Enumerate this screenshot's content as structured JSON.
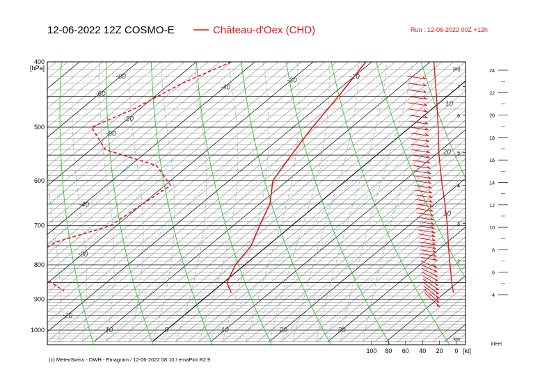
{
  "header": {
    "title": "12-06-2022 12Z COSMO-E",
    "station": "Château-d'Oex (CHD)",
    "run": "Run : 12-06-2022 00Z +12h"
  },
  "footer": "(c) MeteoSwiss - DWH - Emagram / 12-06-2022 08:10 / emaPlot R2.9",
  "colors": {
    "profile": "#e8161b",
    "isotherm": "#000000",
    "dry_adiabat": "#2bc42b",
    "moist_adiabat": "#a0a0a0",
    "mixing_ratio": "#33c8e8",
    "isobar": "#000000"
  },
  "chart_data": {
    "type": "line",
    "diagram": "emagram (skew-T log-p)",
    "y_axis": {
      "label": "[hPa]",
      "scale": "log",
      "range": [
        1040,
        400
      ],
      "ticks": [
        400,
        500,
        600,
        700,
        800,
        900,
        1000
      ],
      "grid": [
        400,
        450,
        500,
        550,
        600,
        650,
        700,
        750,
        800,
        850,
        900,
        950,
        1000
      ]
    },
    "x_axis": {
      "unit": "°C",
      "bottom_ticks": [
        "-10",
        "0",
        "10",
        "20",
        "30"
      ],
      "isotherm_labels": [
        "-60",
        "-60",
        "-50",
        "-50",
        "-40",
        "-40",
        "-30",
        "-30",
        "-20",
        "-20"
      ]
    },
    "height_km": {
      "label": "[m]",
      "bottom_label": "km",
      "ticks": [
        "7",
        "6",
        "5",
        "4",
        "3",
        "2"
      ]
    },
    "height_kfeet": {
      "label": "kfeet",
      "ticks": [
        "24",
        "22",
        "20",
        "18",
        "16",
        "14",
        "12",
        "10",
        "8",
        "6",
        "4"
      ]
    },
    "wind_scale": {
      "unit": "[kt]",
      "ticks": [
        "100",
        "80",
        "60",
        "40",
        "20",
        "0"
      ]
    },
    "wind_speed_labels": [
      "10",
      "20",
      "10"
    ],
    "series": [
      {
        "style": "solid",
        "points": [
          {
            "p": 400,
            "t": -21
          },
          {
            "p": 450,
            "t": -18.6
          },
          {
            "p": 500,
            "t": -16.7
          },
          {
            "p": 550,
            "t": -14.6
          },
          {
            "p": 600,
            "t": -12.5
          },
          {
            "p": 650,
            "t": -8.2
          },
          {
            "p": 700,
            "t": -5.5
          },
          {
            "p": 750,
            "t": -2.8
          },
          {
            "p": 800,
            "t": -1.6
          },
          {
            "p": 850,
            "t": 0.6
          },
          {
            "p": 880,
            "t": 3.4
          }
        ]
      },
      {
        "style": "dashed",
        "points": [
          {
            "p": 400,
            "t": -44
          },
          {
            "p": 430,
            "t": -48
          },
          {
            "p": 470,
            "t": -51
          },
          {
            "p": 500,
            "t": -54.5
          },
          {
            "p": 540,
            "t": -47.5
          },
          {
            "p": 570,
            "t": -35.5
          },
          {
            "p": 610,
            "t": -29
          },
          {
            "p": 650,
            "t": -30
          },
          {
            "p": 700,
            "t": -31
          },
          {
            "p": 740,
            "t": -37
          },
          {
            "p": 780,
            "t": -38
          },
          {
            "p": 800,
            "t": -37
          },
          {
            "p": 820,
            "t": -34.5
          },
          {
            "p": 850,
            "t": -29.5
          },
          {
            "p": 875,
            "t": -25.5
          }
        ]
      }
    ],
    "wind_profile": {
      "points": [
        {
          "p": 400,
          "speed": 29
        },
        {
          "p": 450,
          "speed": 26
        },
        {
          "p": 500,
          "speed": 24
        },
        {
          "p": 550,
          "speed": 23
        },
        {
          "p": 600,
          "speed": 20
        },
        {
          "p": 650,
          "speed": 16
        },
        {
          "p": 700,
          "speed": 13
        },
        {
          "p": 750,
          "speed": 12
        },
        {
          "p": 800,
          "speed": 10
        },
        {
          "p": 850,
          "speed": 8
        },
        {
          "p": 880,
          "speed": 6
        }
      ]
    }
  }
}
